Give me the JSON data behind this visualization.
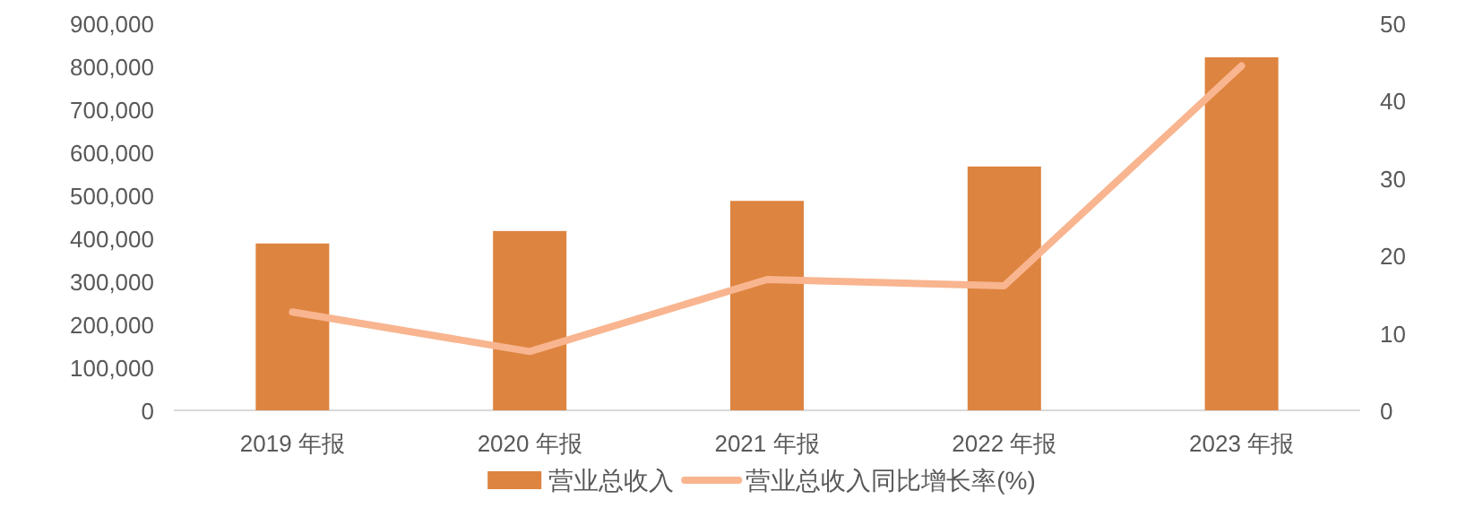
{
  "chart_data": {
    "type": "bar",
    "categories": [
      "2019 年报",
      "2020 年报",
      "2021 年报",
      "2022 年报",
      "2023 年报"
    ],
    "series": [
      {
        "name": "营业总收入",
        "color": "#dd8440",
        "values": [
          388000,
          417000,
          487000,
          567000,
          821000
        ]
      },
      {
        "name": "营业总收入同比增长率(%)",
        "type": "line",
        "axis": "y2",
        "color": "#f8b58f",
        "values": [
          12.7,
          7.6,
          16.9,
          16.1,
          44.5
        ]
      }
    ],
    "ylim": [
      0,
      900000
    ],
    "yticks": [
      0,
      {
        "value": 100000,
        "label": "100,000"
      },
      {
        "value": 200000,
        "label": "200,000"
      },
      {
        "value": 300000,
        "label": "300,000"
      },
      {
        "value": 400000,
        "label": "400,000"
      },
      {
        "value": 500000,
        "label": "500,000"
      },
      {
        "value": 600000,
        "label": "600,000"
      },
      {
        "value": 700000,
        "label": "700,000"
      },
      {
        "value": 800000,
        "label": "800,000"
      },
      {
        "value": 900000,
        "label": "900,000"
      }
    ],
    "y2lim": [
      0,
      50
    ],
    "y2ticks": [
      0,
      10,
      20,
      30,
      40,
      50
    ],
    "legend": "bottom"
  }
}
